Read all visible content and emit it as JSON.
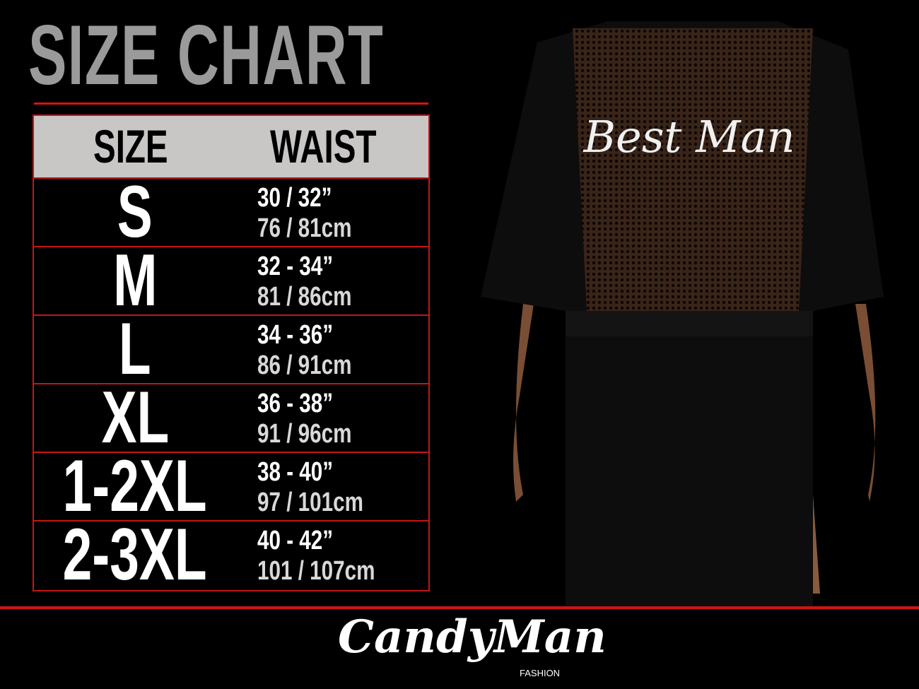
{
  "title": "SIZE CHART",
  "table": {
    "headers": {
      "size": "SIZE",
      "waist": "WAIST"
    },
    "rows": [
      {
        "size": "S",
        "inches": "30 / 32”",
        "cm": "76 / 81cm"
      },
      {
        "size": "M",
        "inches": "32 - 34”",
        "cm": "81 / 86cm"
      },
      {
        "size": "L",
        "inches": "34 - 36”",
        "cm": "86 / 91cm"
      },
      {
        "size": "XL",
        "inches": "36 - 38”",
        "cm": "91 / 96cm"
      },
      {
        "size": "1-2XL",
        "inches": "38 - 40”",
        "cm": "97 / 101cm"
      },
      {
        "size": "2-3XL",
        "inches": "40 - 42”",
        "cm": "101 / 107cm"
      }
    ]
  },
  "product": {
    "back_print": "Best Man"
  },
  "brand": {
    "name": "CandyMan",
    "sub": "FASHION"
  },
  "colors": {
    "accent": "#d21414",
    "header_bg": "#c9c6c6",
    "background": "#000000"
  }
}
